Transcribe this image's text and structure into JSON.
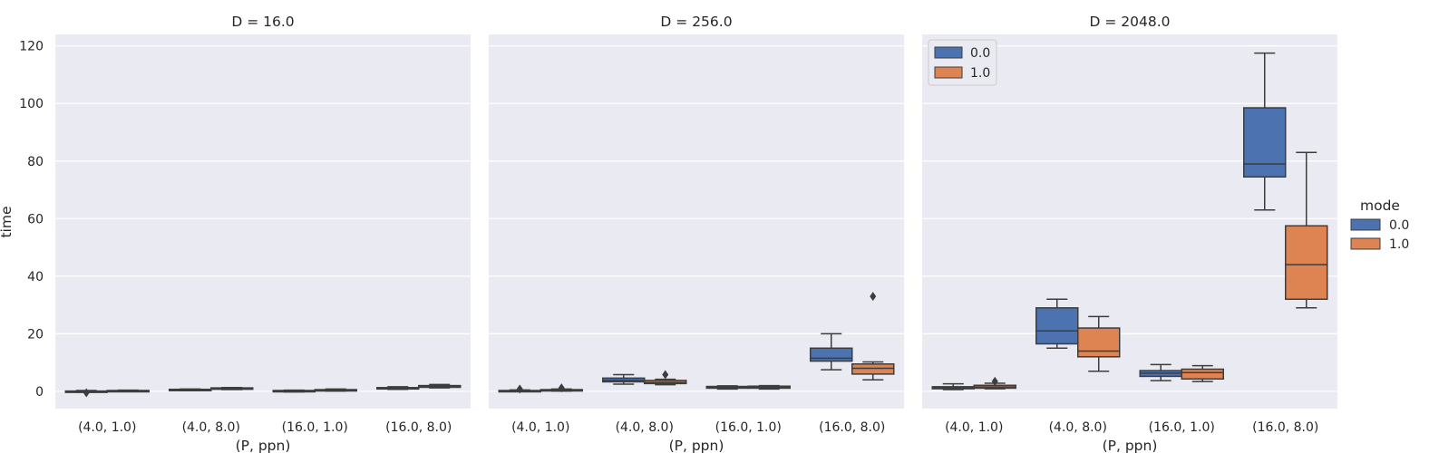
{
  "chart_data": {
    "type": "boxplot",
    "categories": [
      "(4.0, 1.0)",
      "(4.0, 8.0)",
      "(16.0, 1.0)",
      "(16.0, 8.0)"
    ],
    "xlabel": "(P, ppn)",
    "ylabel": "time",
    "ylim": [
      -6,
      124
    ],
    "yticks": [
      0,
      20,
      40,
      60,
      80,
      100,
      120
    ],
    "legend_title": "mode",
    "hue_levels": [
      {
        "name": "0.0",
        "color": "#4c72b0"
      },
      {
        "name": "1.0",
        "color": "#dd8452"
      }
    ],
    "panels": [
      {
        "title": "D = 16.0",
        "boxes": [
          {
            "category": "(4.0, 1.0)",
            "hue": "0.0",
            "min": -0.3,
            "q1": -0.1,
            "median": 0.0,
            "q3": 0.1,
            "max": 0.3,
            "outliers": [
              -0.5
            ]
          },
          {
            "category": "(4.0, 1.0)",
            "hue": "1.0",
            "min": 0.0,
            "q1": 0.1,
            "median": 0.2,
            "q3": 0.3,
            "max": 0.4,
            "outliers": []
          },
          {
            "category": "(4.0, 8.0)",
            "hue": "0.0",
            "min": 0.2,
            "q1": 0.3,
            "median": 0.5,
            "q3": 0.7,
            "max": 0.8,
            "outliers": []
          },
          {
            "category": "(4.0, 8.0)",
            "hue": "1.0",
            "min": 0.6,
            "q1": 0.8,
            "median": 1.0,
            "q3": 1.2,
            "max": 1.3,
            "outliers": []
          },
          {
            "category": "(16.0, 1.0)",
            "hue": "0.0",
            "min": -0.2,
            "q1": -0.1,
            "median": 0.1,
            "q3": 0.3,
            "max": 0.4,
            "outliers": []
          },
          {
            "category": "(16.0, 1.0)",
            "hue": "1.0",
            "min": 0.1,
            "q1": 0.3,
            "median": 0.5,
            "q3": 0.6,
            "max": 0.8,
            "outliers": []
          },
          {
            "category": "(16.0, 8.0)",
            "hue": "0.0",
            "min": 0.7,
            "q1": 0.9,
            "median": 1.1,
            "q3": 1.3,
            "max": 1.6,
            "outliers": []
          },
          {
            "category": "(16.0, 8.0)",
            "hue": "1.0",
            "min": 1.2,
            "q1": 1.4,
            "median": 1.7,
            "q3": 2.0,
            "max": 2.4,
            "outliers": []
          }
        ]
      },
      {
        "title": "D = 256.0",
        "boxes": [
          {
            "category": "(4.0, 1.0)",
            "hue": "0.0",
            "min": 0.0,
            "q1": 0.1,
            "median": 0.2,
            "q3": 0.3,
            "max": 0.5,
            "outliers": [
              0.8
            ]
          },
          {
            "category": "(4.0, 1.0)",
            "hue": "1.0",
            "min": 0.1,
            "q1": 0.3,
            "median": 0.5,
            "q3": 0.6,
            "max": 0.8,
            "outliers": [
              1.2
            ]
          },
          {
            "category": "(4.0, 8.0)",
            "hue": "0.0",
            "min": 2.5,
            "q1": 3.3,
            "median": 3.8,
            "q3": 4.6,
            "max": 5.8,
            "outliers": []
          },
          {
            "category": "(4.0, 8.0)",
            "hue": "1.0",
            "min": 2.3,
            "q1": 2.7,
            "median": 3.1,
            "q3": 3.8,
            "max": 4.2,
            "outliers": [
              5.8
            ]
          },
          {
            "category": "(16.0, 1.0)",
            "hue": "0.0",
            "min": 0.8,
            "q1": 1.1,
            "median": 1.4,
            "q3": 1.7,
            "max": 1.9,
            "outliers": []
          },
          {
            "category": "(16.0, 1.0)",
            "hue": "1.0",
            "min": 0.8,
            "q1": 1.1,
            "median": 1.4,
            "q3": 1.8,
            "max": 2.0,
            "outliers": []
          },
          {
            "category": "(16.0, 8.0)",
            "hue": "0.0",
            "min": 7.5,
            "q1": 10.5,
            "median": 11.5,
            "q3": 15.0,
            "max": 20.0,
            "outliers": []
          },
          {
            "category": "(16.0, 8.0)",
            "hue": "1.0",
            "min": 4.0,
            "q1": 6.0,
            "median": 8.0,
            "q3": 9.5,
            "max": 10.2,
            "outliers": [
              33.0
            ]
          }
        ]
      },
      {
        "title": "D = 2048.0",
        "boxes": [
          {
            "category": "(4.0, 1.0)",
            "hue": "0.0",
            "min": 0.6,
            "q1": 0.9,
            "median": 1.3,
            "q3": 1.6,
            "max": 2.6,
            "outliers": []
          },
          {
            "category": "(4.0, 1.0)",
            "hue": "1.0",
            "min": 0.9,
            "q1": 1.1,
            "median": 1.5,
            "q3": 2.1,
            "max": 2.8,
            "outliers": [
              3.5
            ]
          },
          {
            "category": "(4.0, 8.0)",
            "hue": "0.0",
            "min": 15.0,
            "q1": 16.5,
            "median": 21.0,
            "q3": 29.0,
            "max": 32.0,
            "outliers": []
          },
          {
            "category": "(4.0, 8.0)",
            "hue": "1.0",
            "min": 7.0,
            "q1": 12.0,
            "median": 14.0,
            "q3": 22.0,
            "max": 26.0,
            "outliers": []
          },
          {
            "category": "(16.0, 1.0)",
            "hue": "0.0",
            "min": 3.7,
            "q1": 5.2,
            "median": 6.3,
            "q3": 7.2,
            "max": 9.3,
            "outliers": []
          },
          {
            "category": "(16.0, 1.0)",
            "hue": "1.0",
            "min": 3.4,
            "q1": 4.3,
            "median": 6.5,
            "q3": 7.7,
            "max": 8.9,
            "outliers": []
          },
          {
            "category": "(16.0, 8.0)",
            "hue": "0.0",
            "min": 63.0,
            "q1": 74.5,
            "median": 79.0,
            "q3": 98.5,
            "max": 117.5,
            "outliers": []
          },
          {
            "category": "(16.0, 8.0)",
            "hue": "1.0",
            "min": 29.0,
            "q1": 32.0,
            "median": 44.0,
            "q3": 57.5,
            "max": 83.0,
            "outliers": []
          }
        ]
      }
    ],
    "grid": true,
    "inline_legend_panel": 2,
    "inline_legend_placement": "upper-left",
    "outside_legend_placement": "right"
  }
}
